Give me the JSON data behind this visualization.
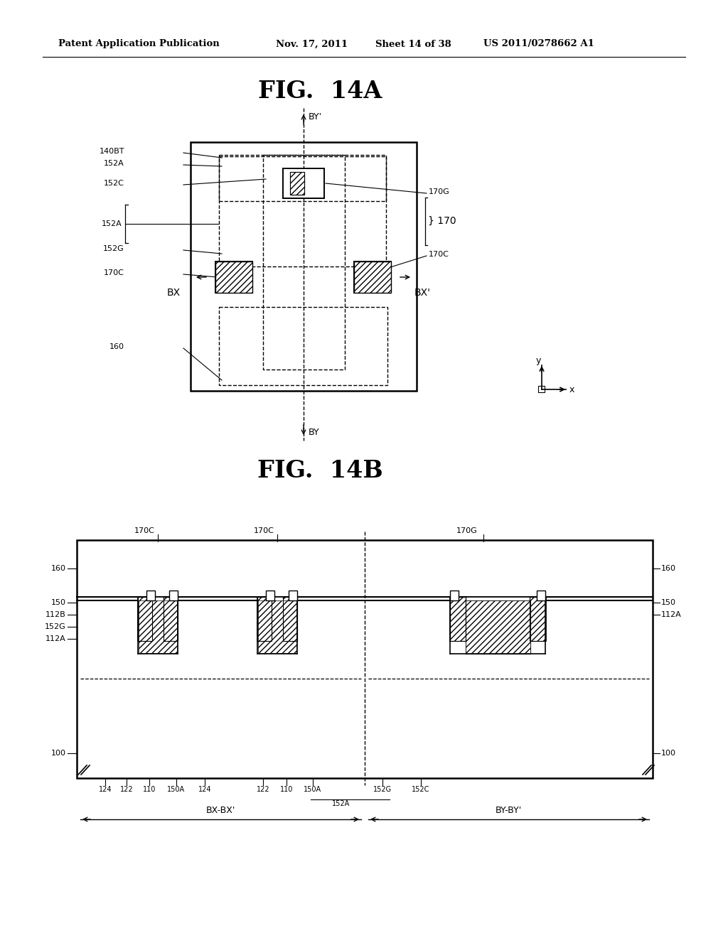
{
  "bg_color": "#ffffff",
  "header_text": "Patent Application Publication",
  "header_date": "Nov. 17, 2011",
  "header_sheet": "Sheet 14 of 38",
  "header_patent": "US 2011/0278662 A1",
  "fig_14a_title": "FIG.  14A",
  "fig_14b_title": "FIG.  14B"
}
